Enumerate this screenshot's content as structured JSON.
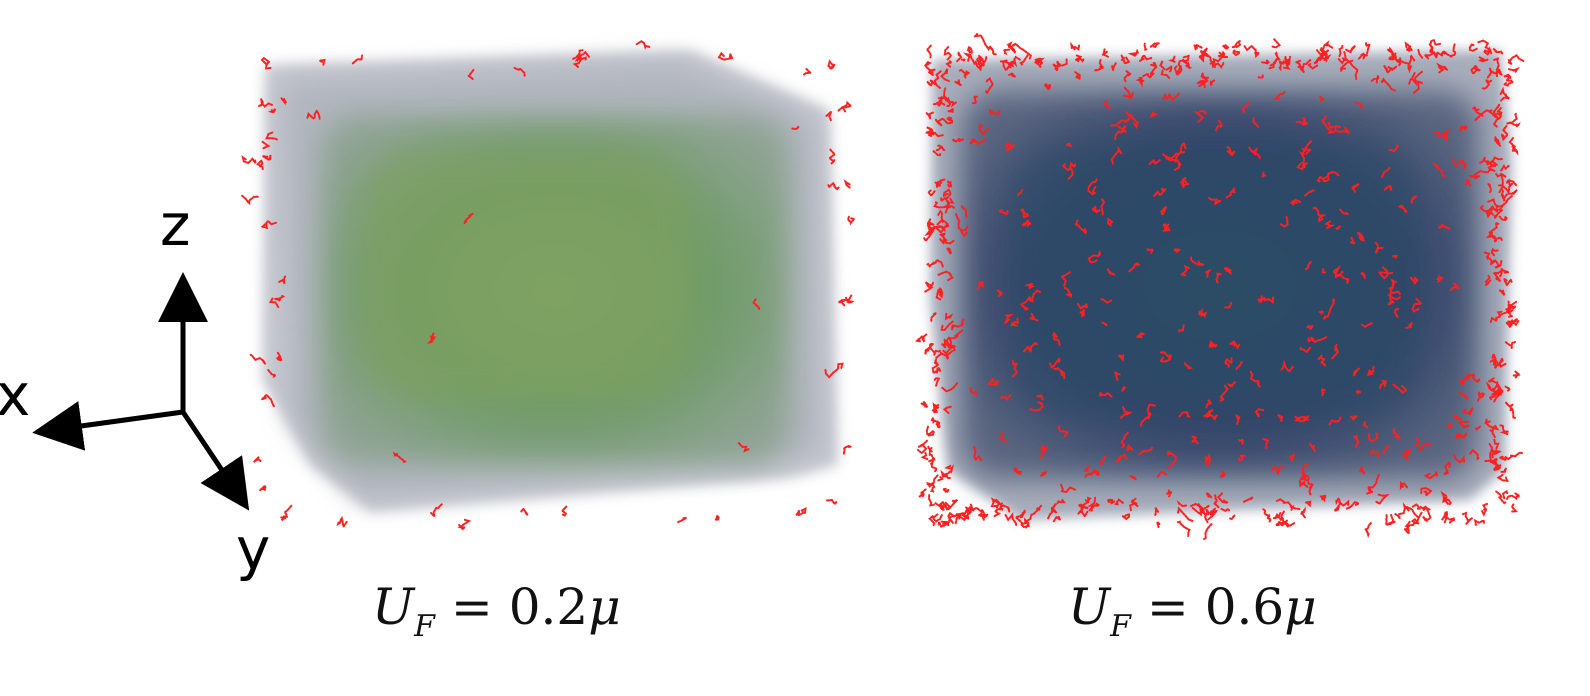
{
  "axes": {
    "z_label": "z",
    "x_label": "x",
    "y_label": "y"
  },
  "panels": [
    {
      "name": "U_F = 0.2μ",
      "symbol": "U",
      "subscript": "F",
      "equals": "=",
      "value": "0.2",
      "unit": "μ",
      "volume_color": "#6f9a5c",
      "haze_color": "#b9bcc6",
      "defect_color": "#ff2020",
      "defect_density": "sparse"
    },
    {
      "name": "U_F = 0.6μ",
      "symbol": "U",
      "subscript": "F",
      "equals": "=",
      "value": "0.6",
      "unit": "μ",
      "volume_color": "#2d4a6e",
      "haze_color": "#8c94a8",
      "defect_color": "#ff2020",
      "defect_density": "dense"
    }
  ]
}
